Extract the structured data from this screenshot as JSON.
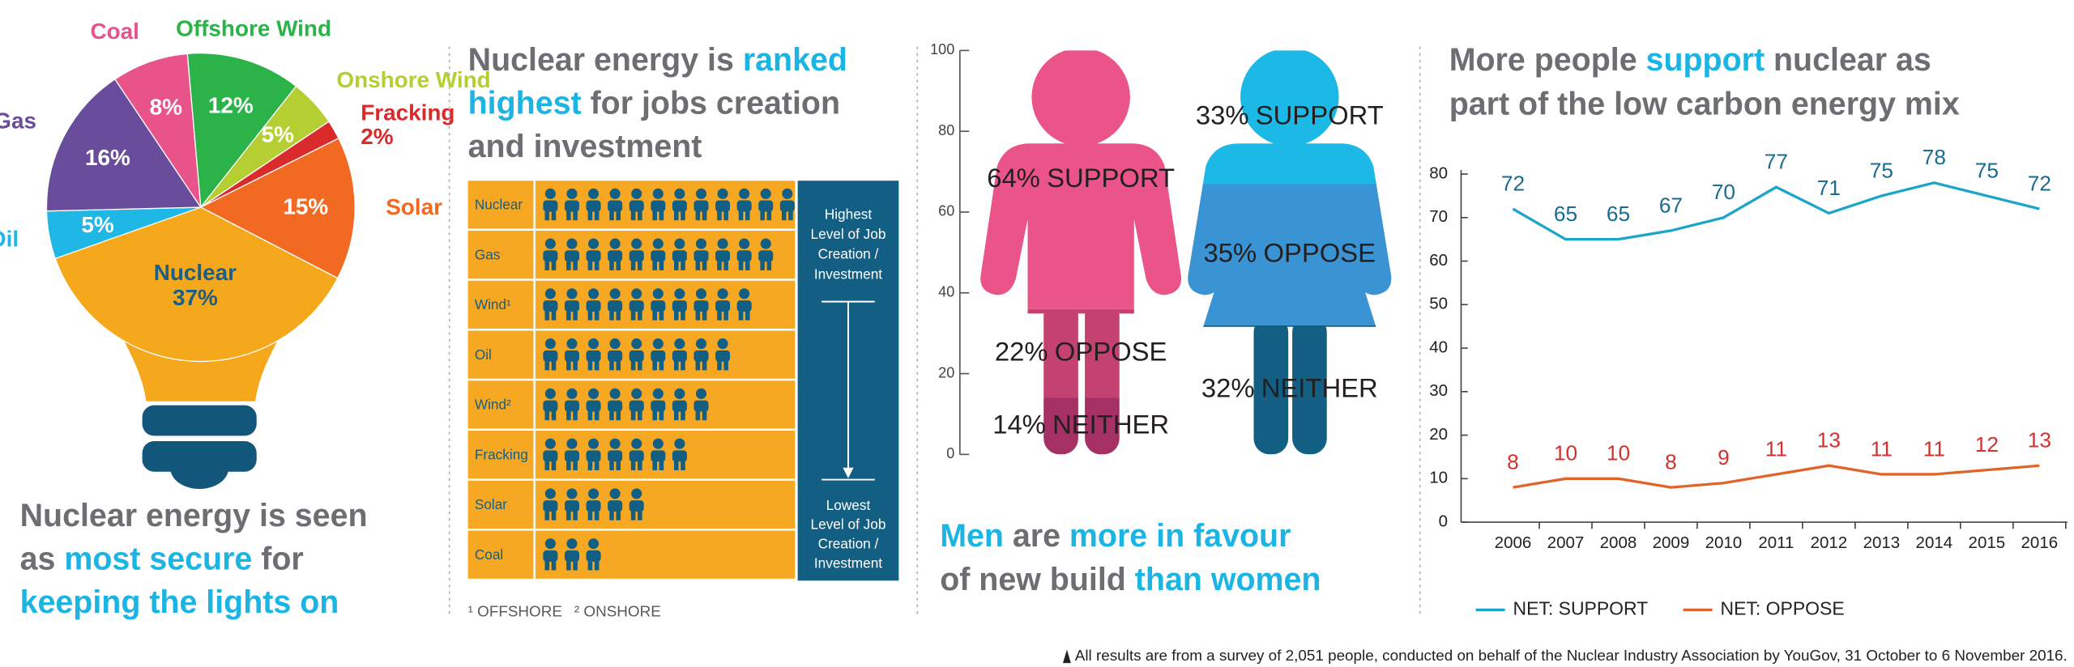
{
  "chart_data": [
    {
      "type": "pie",
      "title": [
        [
          {
            "text": "Nuclear energy is seen",
            "color": "#6d6e71"
          }
        ],
        [
          {
            "text": "as ",
            "color": "#6d6e71"
          },
          {
            "text": "most secure",
            "color": "#1cb5e3"
          },
          {
            "text": " for",
            "color": "#6d6e71"
          }
        ],
        [
          {
            "text": "keeping the lights on",
            "color": "#1cb5e3"
          }
        ]
      ],
      "categories": [
        "Offshore Wind",
        "Onshore Wind",
        "Fracking",
        "Solar",
        "Nuclear",
        "Oil",
        "Gas",
        "Coal"
      ],
      "values": [
        12,
        5,
        2,
        15,
        37,
        5,
        16,
        8
      ],
      "value_labels": [
        "12%",
        "5%",
        "2%",
        "15%",
        "37%",
        "5%",
        "16%",
        "8%"
      ],
      "colors": [
        "#2bb34a",
        "#b5cf32",
        "#d92b2b",
        "#f26a21",
        "#f6a81c",
        "#1fb8e6",
        "#6a4c9c",
        "#e8538a"
      ],
      "label_color": "#1a5f85"
    },
    {
      "type": "pictogram",
      "title": [
        [
          {
            "text": "Nuclear energy is ",
            "color": "#6d6e71"
          },
          {
            "text": "ranked",
            "color": "#1cb5e3"
          }
        ],
        [
          {
            "text": "highest",
            "color": "#1cb5e3"
          },
          {
            "text": " for jobs creation",
            "color": "#6d6e71"
          }
        ],
        [
          {
            "text": "and investment",
            "color": "#6d6e71"
          }
        ]
      ],
      "categories": [
        "Nuclear",
        "Gas",
        "Wind¹",
        "Oil",
        "Wind²",
        "Fracking",
        "Solar",
        "Coal"
      ],
      "values": [
        12,
        11,
        10,
        9,
        8,
        7,
        5,
        3
      ],
      "color": "#135f84",
      "row_color": "#f7a823",
      "top_note": [
        "Highest",
        "Level of Job",
        "Creation /",
        "Investment"
      ],
      "bottom_note": [
        "Lowest",
        "Level of Job",
        "Creation /",
        "Investment"
      ],
      "footnotes": [
        "¹ OFFSHORE",
        "² ONSHORE"
      ]
    },
    {
      "type": "figure",
      "title": [
        [
          {
            "text": "Men",
            "color": "#1cb5e3"
          },
          {
            "text": " are ",
            "color": "#6d6e71"
          },
          {
            "text": "more in favour",
            "color": "#1cb5e3"
          }
        ],
        [
          {
            "text": "of new build ",
            "color": "#6d6e71"
          },
          {
            "text": "than women",
            "color": "#1cb5e3"
          }
        ]
      ],
      "categories": [
        "SUPPORT",
        "OPPOSE",
        "NEITHER"
      ],
      "series": [
        {
          "values": [
            64,
            22,
            14
          ],
          "value_labels": [
            "64%",
            "22%",
            "14%"
          ],
          "colors": [
            "#ea5489",
            "#c4426f",
            "#a53063"
          ]
        },
        {
          "values": [
            33,
            35,
            32
          ],
          "value_labels": [
            "33%",
            "35%",
            "32%"
          ],
          "colors": [
            "#1cb9e6",
            "#3a93d2",
            "#135f84"
          ]
        }
      ],
      "ylim": [
        0,
        100
      ],
      "yticks": [
        0,
        20,
        40,
        60,
        80,
        100
      ]
    },
    {
      "type": "line",
      "title": [
        [
          {
            "text": "More people ",
            "color": "#6d6e71"
          },
          {
            "text": "support",
            "color": "#1cb5e3"
          },
          {
            "text": " nuclear as",
            "color": "#6d6e71"
          }
        ],
        [
          {
            "text": "part of the low carbon energy mix",
            "color": "#6d6e71"
          }
        ]
      ],
      "categories": [
        "2006",
        "2007",
        "2008",
        "2009",
        "2010",
        "2011",
        "2012",
        "2013",
        "2014",
        "2015",
        "2016"
      ],
      "series": [
        {
          "name": "NET: SUPPORT",
          "color": "#1ba5c9",
          "label_color": "#1a6b8f",
          "values": [
            72,
            65,
            65,
            67,
            70,
            77,
            71,
            75,
            78,
            75,
            72
          ]
        },
        {
          "name": "NET: OPPOSE",
          "color": "#e0652b",
          "label_color": "#d2322d",
          "values": [
            8,
            10,
            10,
            8,
            9,
            11,
            13,
            11,
            11,
            12,
            13
          ]
        }
      ],
      "ylim": [
        0,
        80
      ],
      "yticks": [
        0,
        10,
        20,
        30,
        40,
        50,
        60,
        70,
        80
      ]
    }
  ],
  "footnote": "All results are from a survey of 2,051 people, conducted on behalf of the Nuclear Industry Association by YouGov, 31 October to 6 November 2016."
}
